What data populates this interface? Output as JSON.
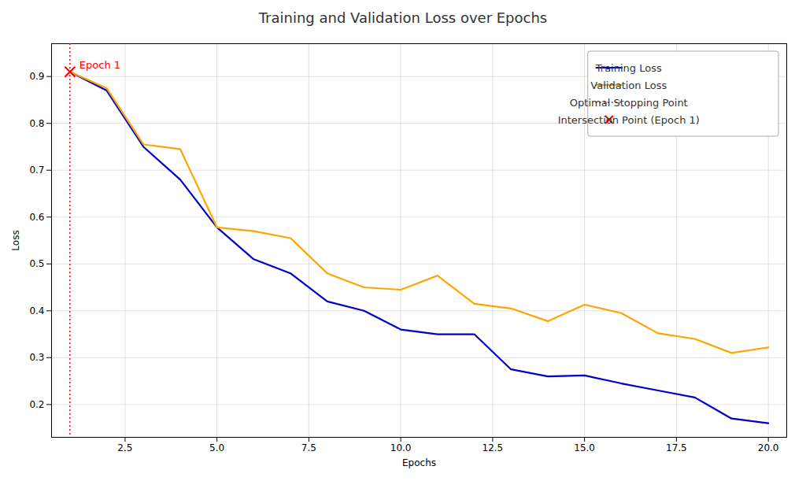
{
  "chart_data": {
    "type": "line",
    "title": "Training and Validation Loss over Epochs",
    "xlabel": "Epochs",
    "ylabel": "Loss",
    "x": [
      1,
      2,
      3,
      4,
      5,
      6,
      7,
      8,
      9,
      10,
      11,
      12,
      13,
      14,
      15,
      16,
      17,
      18,
      19,
      20
    ],
    "series": [
      {
        "name": "Training Loss",
        "type": "line",
        "color": "#0000cc",
        "values": [
          0.91,
          0.87,
          0.75,
          0.68,
          0.578,
          0.51,
          0.48,
          0.42,
          0.4,
          0.36,
          0.35,
          0.35,
          0.275,
          0.26,
          0.262,
          0.245,
          0.23,
          0.215,
          0.17,
          0.16
        ]
      },
      {
        "name": "Validation Loss",
        "type": "line",
        "color": "#ffa500",
        "values": [
          0.91,
          0.875,
          0.755,
          0.745,
          0.578,
          0.57,
          0.555,
          0.48,
          0.45,
          0.445,
          0.475,
          0.415,
          0.405,
          0.378,
          0.413,
          0.395,
          0.352,
          0.34,
          0.31,
          0.322
        ]
      },
      {
        "name": "Optimal Stopping Point",
        "type": "vline",
        "color": "#ff0000",
        "line_style": "dotted",
        "x": [
          1
        ]
      },
      {
        "name": "Intersection Point (Epoch 1)",
        "type": "scatter",
        "color": "#ff0000",
        "marker": "x",
        "x": [
          1
        ],
        "values": [
          0.91
        ]
      }
    ],
    "annotations": [
      {
        "text": "Epoch 1",
        "x": 1,
        "y": 0.91,
        "color": "#ff0000"
      }
    ],
    "xlim": [
      0.5,
      20.5
    ],
    "ylim": [
      0.13,
      0.97
    ],
    "xticks": [
      2.5,
      {
        "value": 5,
        "label": "5.0"
      },
      7.5,
      {
        "value": 10,
        "label": "10.0"
      },
      12.5,
      {
        "value": 15,
        "label": "15.0"
      },
      17.5,
      {
        "value": 20,
        "label": "20.0"
      }
    ],
    "yticks": [
      0.2,
      0.3,
      0.4,
      0.5,
      0.6,
      0.7,
      0.8,
      0.9
    ],
    "grid": true,
    "legend": "upper right"
  }
}
